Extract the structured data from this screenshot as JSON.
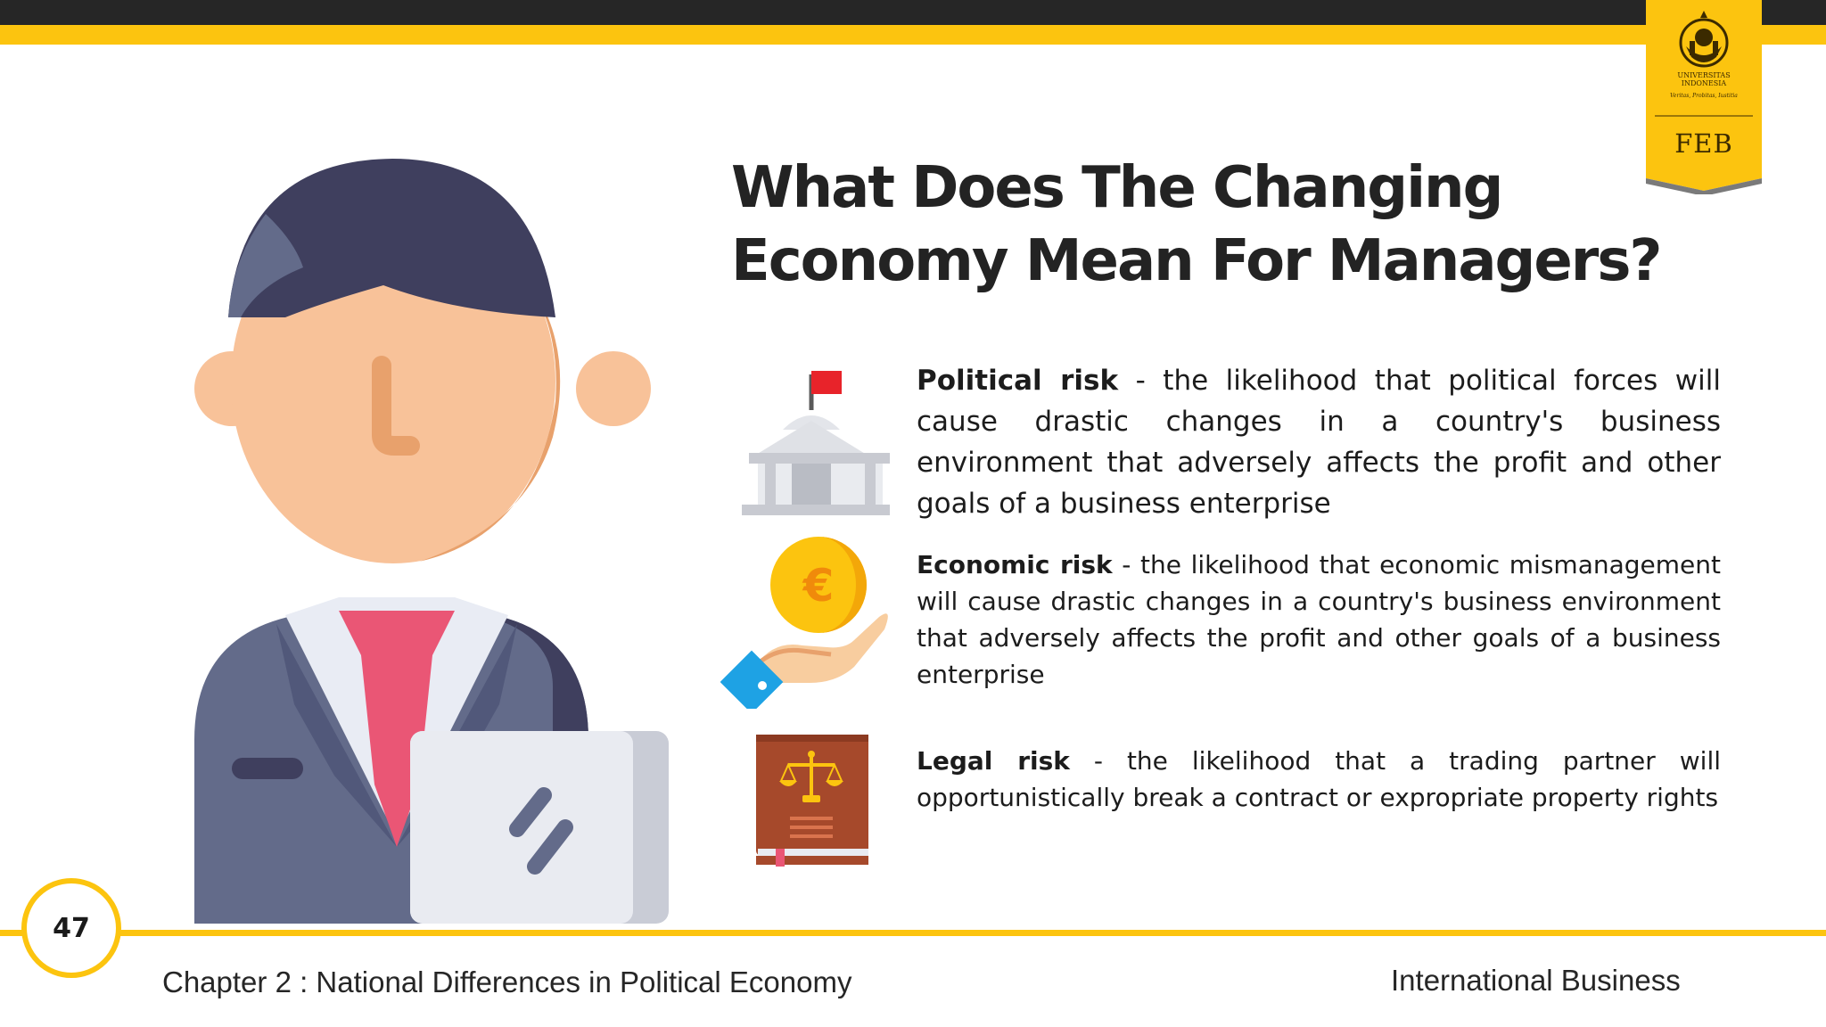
{
  "header": {
    "badge_label": "FEB",
    "logo_lines": [
      "UNIVERSITAS",
      "INDONESIA",
      "Veritas, Probitas, Iustitia"
    ]
  },
  "title": {
    "line1": "What Does The Changing",
    "line2": "Economy Mean For Managers?"
  },
  "risks": [
    {
      "term": "Political risk",
      "definition": " - the likelihood that political forces will cause drastic changes in a country's business environment that adversely affects the profit and other goals of a business enterprise",
      "icon": "government-building-icon"
    },
    {
      "term": "Economic risk",
      "definition": " - the likelihood that economic mismanagement will cause drastic changes in a country's business environment that adversely affects the profit and other goals of a business enterprise",
      "icon": "euro-coin-hand-icon"
    },
    {
      "term": "Legal risk",
      "definition": " - the likelihood that a trading partner will opportunistically break a contract or expropriate property rights",
      "icon": "law-book-scales-icon"
    }
  ],
  "footer": {
    "page_number": "47",
    "chapter": "Chapter 2 : National Differences in Political Economy",
    "course": "International Business"
  },
  "colors": {
    "accent_yellow": "#fcc40f",
    "dark_bar": "#262626",
    "hair": "#3f3f5e",
    "skin": "#f8c299",
    "suit": "#636b8a",
    "tie": "#ea5675"
  }
}
